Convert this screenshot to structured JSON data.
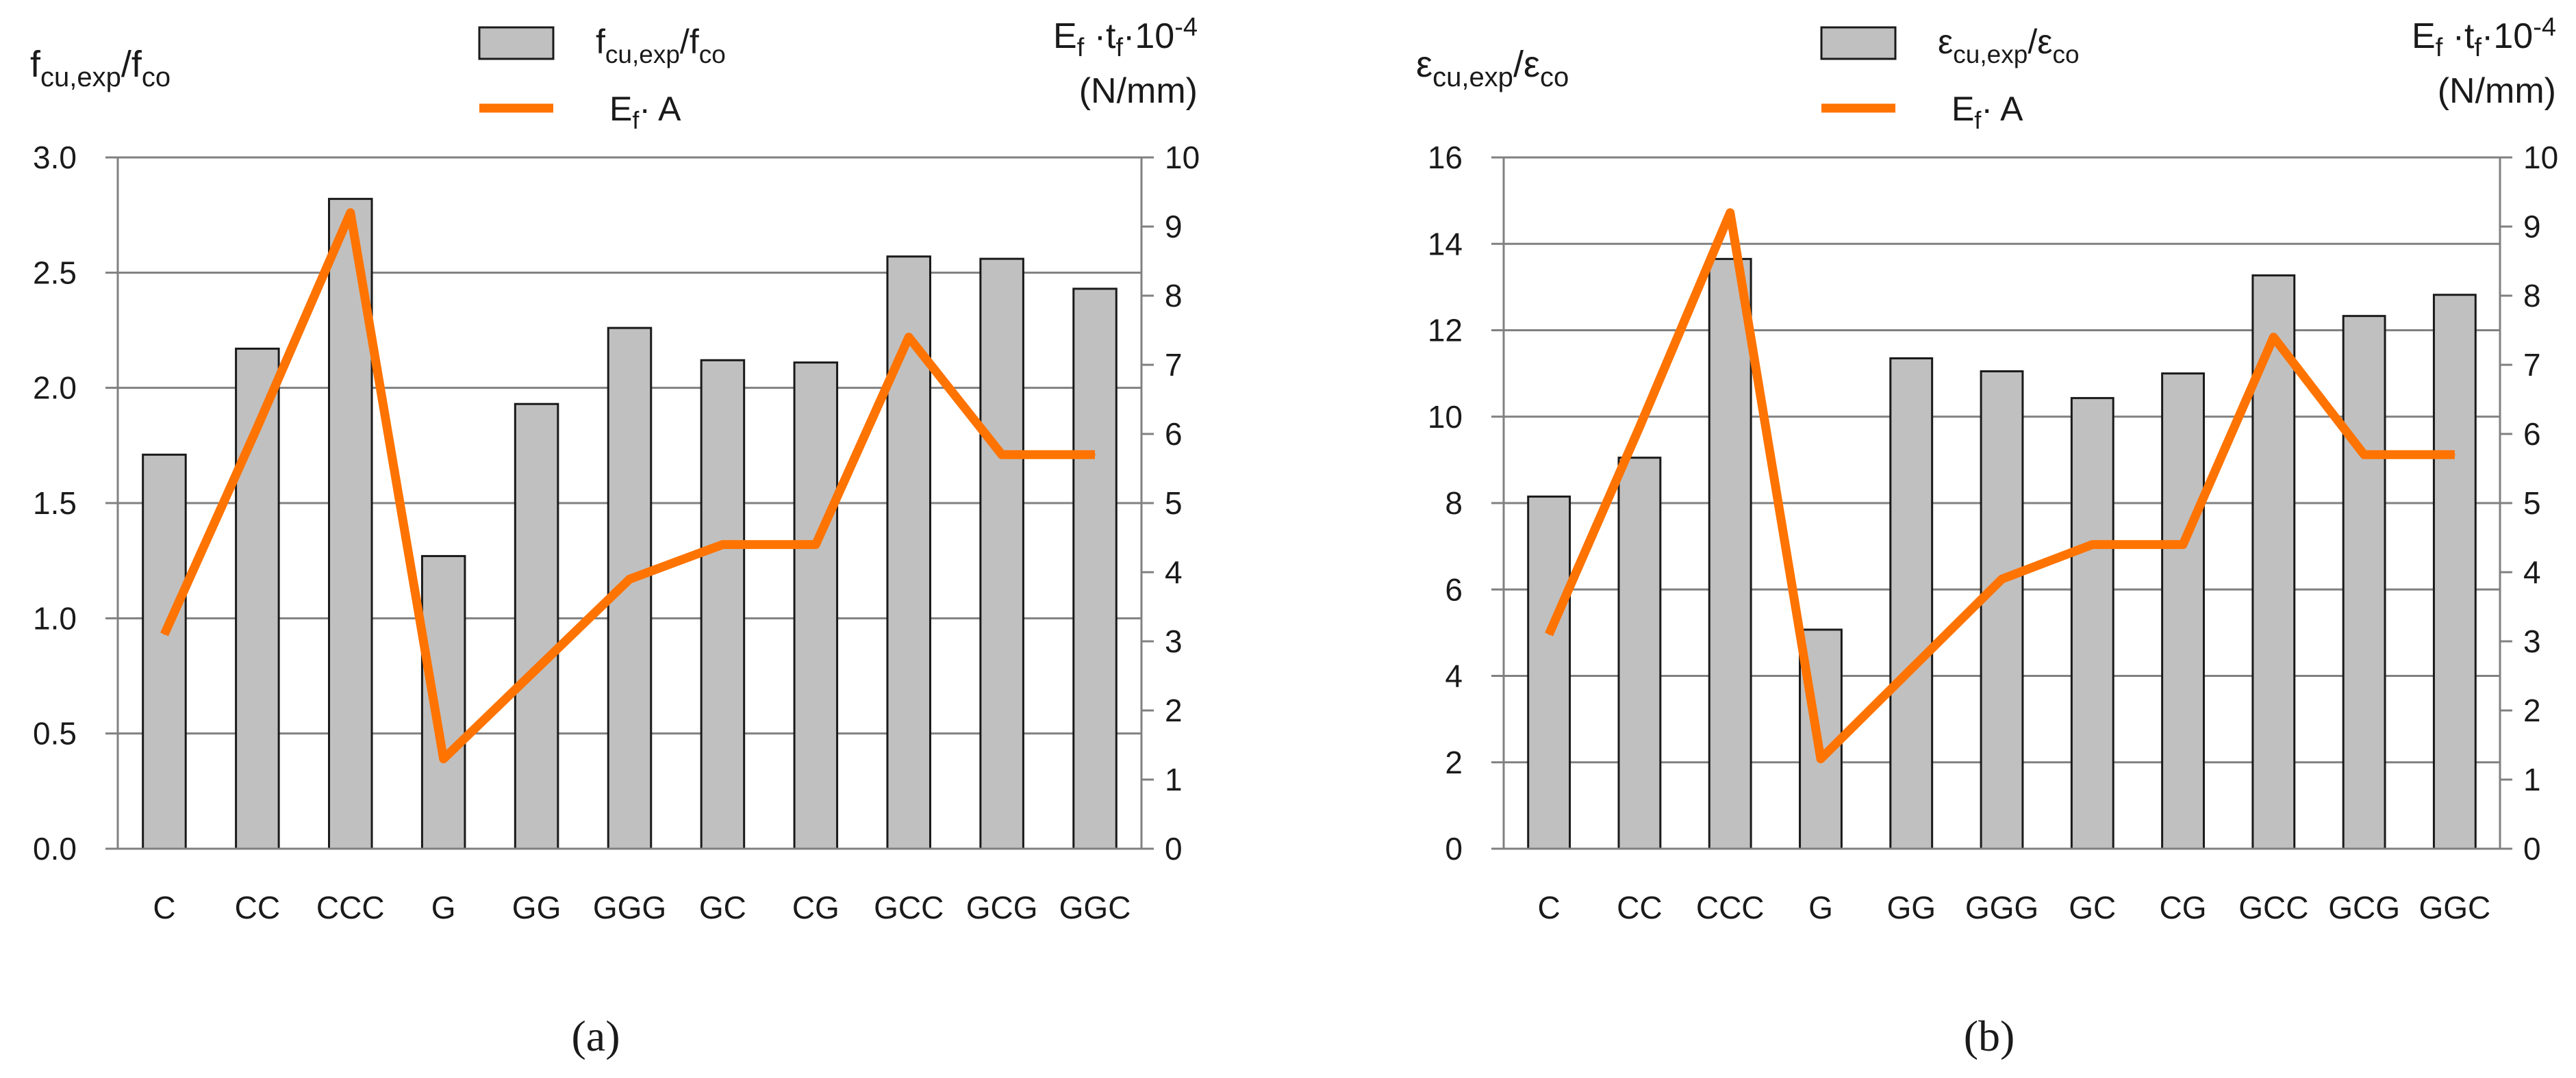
{
  "colors": {
    "bar_fill": "#c0c0c0",
    "bar_edge": "#1a1a1a",
    "line": "#ff7300",
    "grid": "#808080",
    "text": "#1a1a1a"
  },
  "chart_data": [
    {
      "type": "bar",
      "panel_label": "(a)",
      "categories": [
        "C",
        "CC",
        "CCC",
        "G",
        "GG",
        "GGG",
        "GC",
        "CG",
        "GCC",
        "GCG",
        "GGC"
      ],
      "series": [
        {
          "name": "fcu,exp/fco",
          "axis": "left",
          "kind": "bar",
          "values": [
            1.71,
            2.17,
            2.82,
            1.27,
            1.93,
            2.26,
            2.12,
            2.11,
            2.57,
            2.56,
            2.43
          ]
        },
        {
          "name": "Ef · A",
          "axis": "right",
          "kind": "line",
          "values": [
            3.1,
            6.1,
            9.2,
            1.3,
            2.6,
            3.9,
            4.4,
            4.4,
            7.4,
            5.7,
            5.7
          ]
        }
      ],
      "ylabel_left": {
        "main": "f",
        "sub1": "cu,exp",
        "mid": "/f",
        "sub2": "co"
      },
      "ylabel_right": {
        "line1_parts": [
          "E",
          "f",
          " ·t",
          "f",
          "·10",
          "-4"
        ],
        "line2": "(N/mm)"
      },
      "y_left": {
        "min": 0,
        "max": 3,
        "ticks": [
          "0.0",
          "0.5",
          "1.0",
          "1.5",
          "2.0",
          "2.5",
          "3.0"
        ]
      },
      "y_right": {
        "min": 0,
        "max": 10,
        "ticks": [
          "0",
          "1",
          "2",
          "3",
          "4",
          "5",
          "6",
          "7",
          "8",
          "9",
          "10"
        ]
      },
      "legend": {
        "position": "top-center",
        "bar_label": {
          "main": "f",
          "sub1": "cu,exp",
          "mid": "/f",
          "sub2": "co"
        },
        "line_label": {
          "main": "E",
          "sub": "f",
          "rest": "· A"
        }
      },
      "grid": true
    },
    {
      "type": "bar",
      "panel_label": "(b)",
      "categories": [
        "C",
        "CC",
        "CCC",
        "G",
        "GG",
        "GGG",
        "GC",
        "CG",
        "GCC",
        "GCG",
        "GGC"
      ],
      "series": [
        {
          "name": "εcu,exp/εco",
          "axis": "left",
          "kind": "bar",
          "values": [
            8.15,
            9.05,
            13.65,
            5.07,
            11.35,
            11.05,
            10.43,
            11.0,
            13.27,
            12.33,
            12.82
          ]
        },
        {
          "name": "Ef · A",
          "axis": "right",
          "kind": "line",
          "values": [
            3.1,
            6.1,
            9.2,
            1.3,
            2.6,
            3.9,
            4.4,
            4.4,
            7.4,
            5.7,
            5.7
          ]
        }
      ],
      "ylabel_left": {
        "main": "ε",
        "sub1": "cu,exp",
        "mid": "/ε",
        "sub2": "co"
      },
      "ylabel_right": {
        "line1_parts": [
          "E",
          "f",
          " ·t",
          "f",
          "·10",
          "-4"
        ],
        "line2": "(N/mm)"
      },
      "y_left": {
        "min": 0,
        "max": 16,
        "ticks": [
          "0",
          "2",
          "4",
          "6",
          "8",
          "10",
          "12",
          "14",
          "16"
        ]
      },
      "y_right": {
        "min": 0,
        "max": 10,
        "ticks": [
          "0",
          "1",
          "2",
          "3",
          "4",
          "5",
          "6",
          "7",
          "8",
          "9",
          "10"
        ]
      },
      "legend": {
        "position": "top-center",
        "bar_label": {
          "main": "ε",
          "sub1": "cu,exp",
          "mid": "/ε",
          "sub2": "co"
        },
        "line_label": {
          "main": "E",
          "sub": "f",
          "rest": "· A"
        }
      },
      "grid": true
    }
  ]
}
